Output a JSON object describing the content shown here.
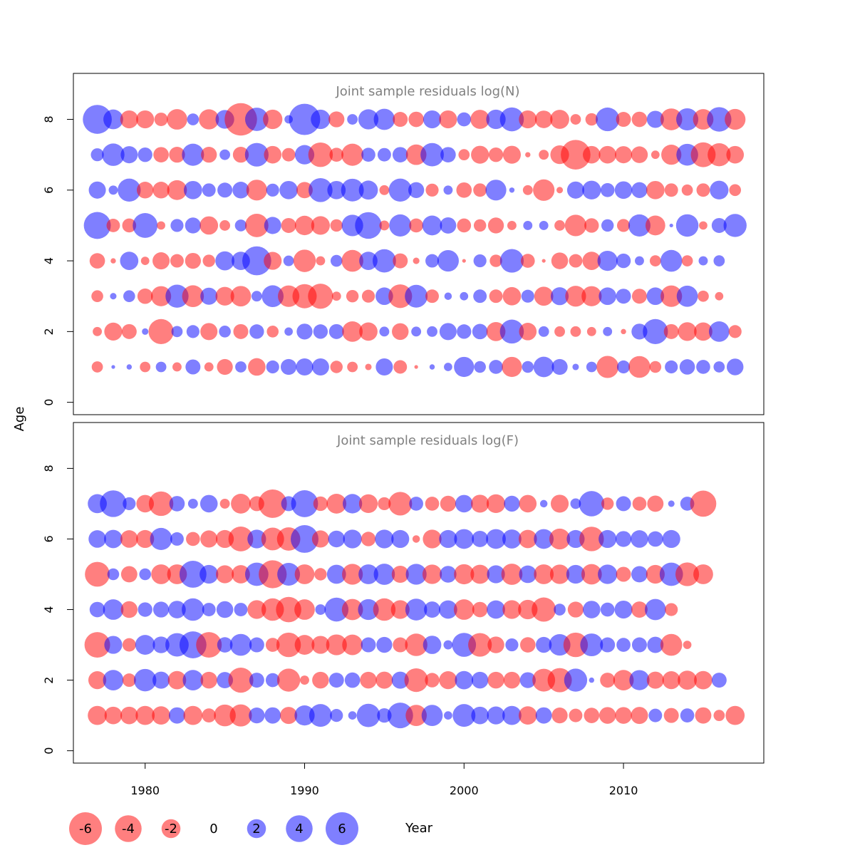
{
  "chart_data": {
    "type": "scatter",
    "subtype": "bubble",
    "xlabel": "Year",
    "ylabel": "Age",
    "xlim": [
      1975.5,
      2018.8
    ],
    "x_ticks": [
      1980,
      1990,
      2000,
      2010
    ],
    "y_ticks": [
      0,
      2,
      4,
      6,
      8
    ],
    "colors": {
      "negative": "#ff0000",
      "positive": "#0000ff",
      "opacity": 0.5
    },
    "legend": {
      "labels": [
        "-6",
        "-4",
        "-2",
        "0",
        "2",
        "4",
        "6"
      ],
      "values": [
        -6,
        -4,
        -2,
        0,
        2,
        4,
        6
      ]
    },
    "years": [
      1977,
      1978,
      1979,
      1980,
      1981,
      1982,
      1983,
      1984,
      1985,
      1986,
      1987,
      1988,
      1989,
      1990,
      1991,
      1992,
      1993,
      1994,
      1995,
      1996,
      1997,
      1998,
      1999,
      2000,
      2001,
      2002,
      2003,
      2004,
      2005,
      2006,
      2007,
      2008,
      2009,
      2010,
      2011,
      2012,
      2013,
      2014,
      2015,
      2016,
      2017
    ],
    "panels": [
      {
        "title": "Joint sample residuals log(N)",
        "ylim": [
          -0.35,
          9.3
        ],
        "ages": [
          1,
          2,
          3,
          4,
          5,
          6,
          7,
          8
        ],
        "residuals": [
          [
            -0.9,
            0.1,
            0.2,
            -0.8,
            0.8,
            -0.6,
            1.6,
            -0.6,
            -1.8,
            0.9,
            -2.2,
            1.2,
            1.8,
            2.1,
            2.1,
            -1.1,
            -0.8,
            -0.3,
            2.1,
            -1.3,
            -0.1,
            0.2,
            0.5,
            2.9,
            1.0,
            1.4,
            -2.9,
            1.0,
            3.0,
            1.8,
            0.3,
            0.8,
            -3.5,
            1.2,
            -3.4,
            -1.0,
            1.2,
            1.7,
            1.4,
            0.9,
            2.0
          ],
          [
            -0.6,
            -2.3,
            -1.6,
            0.3,
            -4.5,
            0.9,
            1.2,
            -2.1,
            1.0,
            -1.6,
            1.5,
            -1.0,
            0.5,
            1.8,
            1.5,
            1.6,
            -3.0,
            -2.4,
            0.7,
            -2.0,
            0.7,
            0.8,
            2.1,
            1.5,
            1.7,
            -2.6,
            4.1,
            -2.2,
            0.8,
            -0.8,
            -0.8,
            -0.6,
            0.6,
            -0.2,
            1.8,
            4.5,
            -1.6,
            -2.5,
            -2.4,
            3.0,
            -1.2
          ],
          [
            -1.0,
            0.3,
            1.0,
            -1.7,
            -2.9,
            3.8,
            -3.4,
            2.1,
            -2.5,
            -3.0,
            0.8,
            3.4,
            -3.3,
            -4.2,
            -4.5,
            -0.6,
            -1.1,
            -1.2,
            2.2,
            -4.0,
            3.7,
            -1.3,
            0.4,
            0.5,
            1.3,
            -1.3,
            -2.4,
            1.2,
            -2.6,
            2.3,
            -3.1,
            -2.9,
            2.2,
            1.6,
            -1.6,
            2.2,
            -3.3,
            3.2,
            -0.9,
            -0.5
          ],
          [
            -1.7,
            -0.2,
            2.4,
            -0.5,
            -2.1,
            -1.3,
            -1.8,
            -1.1,
            2.6,
            2.4,
            6.0,
            -2.3,
            0.8,
            -3.6,
            -0.6,
            1.0,
            -3.4,
            2.4,
            3.9,
            -1.6,
            -0.3,
            1.3,
            3.3,
            -0.1,
            1.2,
            -1.1,
            4.0,
            -1.4,
            -0.1,
            -2.0,
            -1.3,
            -2.4,
            2.9,
            1.5,
            0.6,
            -0.9,
            3.4,
            -0.9,
            0.6,
            0.9
          ],
          [
            5.2,
            -1.3,
            -1.4,
            4.4,
            -0.5,
            1.2,
            1.8,
            -2.4,
            -0.8,
            1.0,
            -3.9,
            2.1,
            -1.6,
            -2.7,
            -2.5,
            -1.1,
            3.3,
            5.1,
            -0.7,
            3.5,
            -1.4,
            2.8,
            1.9,
            -1.4,
            -1.1,
            -1.8,
            -0.6,
            0.6,
            0.6,
            -0.8,
            -3.3,
            -1.5,
            1.1,
            -1.2,
            3.5,
            -2.8,
            0.1,
            3.6,
            -0.5,
            1.6,
            3.8
          ],
          [
            2.1,
            0.6,
            3.8,
            -2.0,
            -2.0,
            -2.8,
            2.4,
            1.3,
            1.6,
            2.0,
            -3.1,
            1.2,
            2.4,
            -1.9,
            4.1,
            2.4,
            3.7,
            2.6,
            -0.7,
            3.8,
            1.8,
            -1.2,
            0.6,
            -1.7,
            -1.3,
            3.1,
            0.2,
            -0.7,
            -3.3,
            -0.3,
            2.1,
            2.5,
            1.4,
            2.2,
            1.8,
            -2.4,
            -1.3,
            -0.9,
            -1.3,
            2.5,
            -1.0
          ],
          [
            1.2,
            3.6,
            2.1,
            1.5,
            -1.7,
            -1.8,
            3.5,
            -1.8,
            0.8,
            -1.8,
            4.0,
            -2.2,
            -1.3,
            2.7,
            -4.3,
            -1.4,
            -3.5,
            1.4,
            1.3,
            1.7,
            -3.0,
            3.9,
            1.7,
            -0.9,
            -2.3,
            -1.5,
            -2.3,
            -0.2,
            -0.7,
            -2.5,
            -6.3,
            -2.2,
            -2.2,
            -2.1,
            -2.0,
            -0.5,
            -2.9,
            3.4,
            -4.4,
            -3.8,
            -2.2
          ],
          [
            6.0,
            2.8,
            -2.3,
            -2.3,
            -1.3,
            -3.0,
            1.0,
            -2.9,
            2.5,
            -7.5,
            3.9,
            -2.7,
            0.5,
            7.0,
            2.7,
            -1.8,
            0.8,
            2.9,
            3.2,
            -1.6,
            -1.7,
            2.3,
            -2.3,
            1.4,
            -2.6,
            2.7,
            4.1,
            -2.3,
            -2.2,
            -2.6,
            -0.8,
            -1.1,
            4.0,
            -1.6,
            -1.7,
            2.1,
            -3.4,
            3.5,
            -3.0,
            4.3,
            -3.1
          ]
        ]
      },
      {
        "title": "Joint sample residuals log(F)",
        "ylim": [
          -0.35,
          9.3
        ],
        "ages": [
          1,
          2,
          3,
          4,
          5,
          6,
          7
        ],
        "residuals": [
          [
            -2.6,
            -2.2,
            -2.2,
            -2.6,
            -2.4,
            1.9,
            -2.6,
            -1.4,
            -3.4,
            -3.5,
            1.8,
            1.9,
            -2.1,
            2.9,
            3.7,
            1.2,
            0.5,
            3.9,
            1.5,
            4.7,
            -3.2,
            3.2,
            0.5,
            3.7,
            2.2,
            2.3,
            2.6,
            -2.4,
            1.9,
            -1.8,
            -1.3,
            -1.7,
            -2.0,
            -2.0,
            -2.1,
            1.3,
            -1.6,
            1.4,
            -1.9,
            -0.9,
            -2.6
          ],
          [
            -2.3,
            3.0,
            -1.3,
            3.6,
            2.1,
            -2.4,
            3.0,
            -2.0,
            1.9,
            -4.5,
            1.6,
            1.4,
            -3.8,
            -0.6,
            -2.0,
            1.6,
            1.7,
            -2.0,
            -2.1,
            2.1,
            -4.0,
            -1.5,
            -2.3,
            2.4,
            2.0,
            -2.0,
            -2.0,
            1.8,
            -3.7,
            -4.2,
            3.8,
            0.2,
            -1.6,
            -3.0,
            2.9,
            -2.1,
            -2.3,
            -2.6,
            -2.4,
            1.6
          ],
          [
            -4.7,
            2.3,
            -1.3,
            2.8,
            2.0,
            3.9,
            5.2,
            -4.7,
            1.7,
            3.4,
            1.6,
            -1.4,
            -4.3,
            -2.8,
            -2.3,
            -3.1,
            -3.0,
            1.6,
            1.8,
            -1.6,
            -3.6,
            2.4,
            0.6,
            4.1,
            -4.0,
            -2.0,
            1.2,
            -1.7,
            1.8,
            3.3,
            -4.3,
            3.7,
            1.6,
            1.4,
            1.6,
            1.9,
            -3.4,
            -0.5
          ],
          [
            1.7,
            3.0,
            -2.0,
            1.5,
            1.8,
            2.2,
            3.6,
            1.3,
            2.0,
            1.3,
            -2.5,
            -3.6,
            -4.6,
            -3.0,
            0.8,
            4.1,
            -3.2,
            3.1,
            -3.6,
            -2.5,
            3.4,
            1.9,
            2.4,
            -3.0,
            -1.7,
            2.4,
            -2.5,
            -2.7,
            -4.2,
            1.0,
            -1.8,
            2.2,
            1.4,
            2.3,
            -1.9,
            3.2,
            -1.2
          ],
          [
            -4.4,
            1.0,
            -1.9,
            1.0,
            -2.8,
            -2.8,
            5.2,
            2.5,
            -2.3,
            -2.4,
            3.9,
            -5.6,
            3.7,
            -2.8,
            -1.1,
            2.6,
            -3.1,
            2.8,
            3.2,
            -2.1,
            3.1,
            -2.7,
            2.0,
            -2.9,
            -2.6,
            2.3,
            -3.2,
            2.2,
            -2.8,
            -2.7,
            2.5,
            -3.0,
            2.7,
            -1.6,
            1.9,
            -2.5,
            3.9,
            -4.0,
            -2.8
          ],
          [
            2.2,
            2.4,
            -2.2,
            -2.3,
            3.5,
            1.3,
            -1.4,
            -2.1,
            -2.3,
            -4.4,
            2.5,
            -3.7,
            -3.9,
            5.5,
            -2.1,
            2.0,
            2.5,
            -1.5,
            2.5,
            2.3,
            -0.4,
            -2.5,
            2.3,
            2.8,
            1.9,
            2.8,
            2.6,
            -2.4,
            2.8,
            -3.1,
            2.3,
            -4.3,
            2.3,
            1.8,
            2.2,
            1.7,
            2.3
          ],
          [
            2.6,
            5.1,
            1.2,
            -2.2,
            -4.3,
            1.7,
            0.7,
            2.2,
            -0.7,
            -2.8,
            -1.6,
            -5.8,
            1.6,
            5.2,
            -1.5,
            -2.8,
            2.7,
            -2.5,
            -1.2,
            -4.0,
            1.4,
            -1.4,
            -1.8,
            2.2,
            -2.3,
            -2.5,
            1.8,
            -2.2,
            0.4,
            -2.3,
            0.8,
            4.6,
            -1.1,
            1.6,
            -1.4,
            -1.9,
            0.3,
            1.4,
            -4.9
          ]
        ]
      }
    ]
  }
}
